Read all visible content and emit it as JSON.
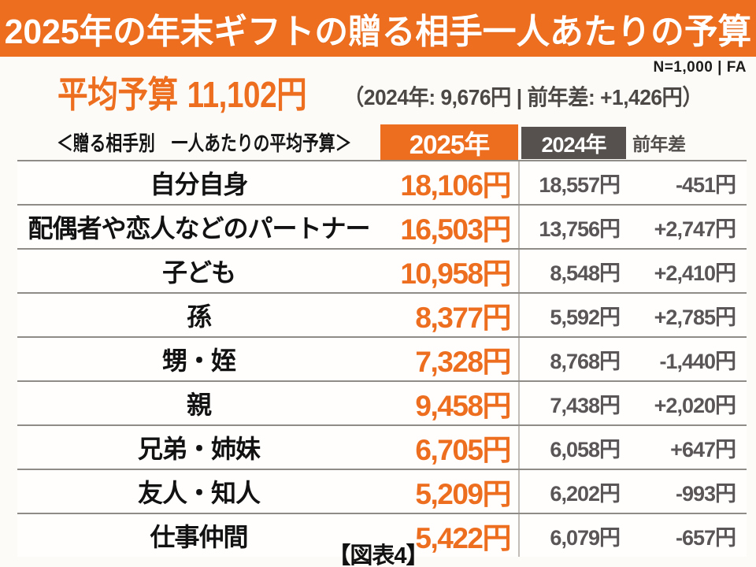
{
  "banner": {
    "title": "2025年の年末ギフトの贈る相手一人あたりの予算"
  },
  "meta": {
    "sample_note": "N=1,000 | FA"
  },
  "summary": {
    "label": "平均予算",
    "value": "11,102円",
    "comparison": "（2024年: 9,676円 | 前年差: +1,426円）"
  },
  "table": {
    "caption": "＜贈る相手別　一人あたりの平均予算＞",
    "columns": {
      "y2025": "2025年",
      "y2024": "2024年",
      "diff": "前年差"
    },
    "rows": [
      {
        "label": "自分自身",
        "y2025": "18,106円",
        "y2024": "18,557円",
        "diff": "-451円"
      },
      {
        "label": "配偶者や恋人などのパートナー",
        "y2025": "16,503円",
        "y2024": "13,756円",
        "diff": "+2,747円"
      },
      {
        "label": "子ども",
        "y2025": "10,958円",
        "y2024": "8,548円",
        "diff": "+2,410円"
      },
      {
        "label": "孫",
        "y2025": "8,377円",
        "y2024": "5,592円",
        "diff": "+2,785円"
      },
      {
        "label": "甥・姪",
        "y2025": "7,328円",
        "y2024": "8,768円",
        "diff": "-1,440円"
      },
      {
        "label": "親",
        "y2025": "9,458円",
        "y2024": "7,438円",
        "diff": "+2,020円"
      },
      {
        "label": "兄弟・姉妹",
        "y2025": "6,705円",
        "y2024": "6,058円",
        "diff": "+647円"
      },
      {
        "label": "友人・知人",
        "y2025": "5,209円",
        "y2024": "6,202円",
        "diff": "-993円"
      },
      {
        "label": "仕事仲間",
        "y2025": "5,422円",
        "y2024": "6,079円",
        "diff": "-657円"
      }
    ]
  },
  "footer": {
    "caption": "【図表4】"
  },
  "colors": {
    "accent_orange": "#ED6E1F",
    "header_gray": "#56514E",
    "value_gray": "#5A5657",
    "separator_gray": "#8F8B86"
  },
  "chart_data": {
    "type": "table",
    "title": "2025年の年末ギフトの贈る相手一人あたりの予算",
    "subtitle": "平均予算 11,102円（2024年: 9,676円 | 前年差: +1,426円）",
    "caption": "＜贈る相手別　一人あたりの平均予算＞",
    "sample": "N=1,000 | FA",
    "figure_label": "【図表4】",
    "average_budget_yen": {
      "y2025": 11102,
      "y2024": 9676,
      "diff": 1426
    },
    "categories": [
      "自分自身",
      "配偶者や恋人などのパートナー",
      "子ども",
      "孫",
      "甥・姪",
      "親",
      "兄弟・姉妹",
      "友人・知人",
      "仕事仲間"
    ],
    "series": [
      {
        "name": "2025年",
        "values": [
          18106,
          16503,
          10958,
          8377,
          7328,
          9458,
          6705,
          5209,
          5422
        ]
      },
      {
        "name": "2024年",
        "values": [
          18557,
          13756,
          8548,
          5592,
          8768,
          7438,
          6058,
          6202,
          6079
        ]
      },
      {
        "name": "前年差",
        "values": [
          -451,
          2747,
          2410,
          2785,
          -1440,
          2020,
          647,
          -993,
          -657
        ]
      }
    ]
  }
}
